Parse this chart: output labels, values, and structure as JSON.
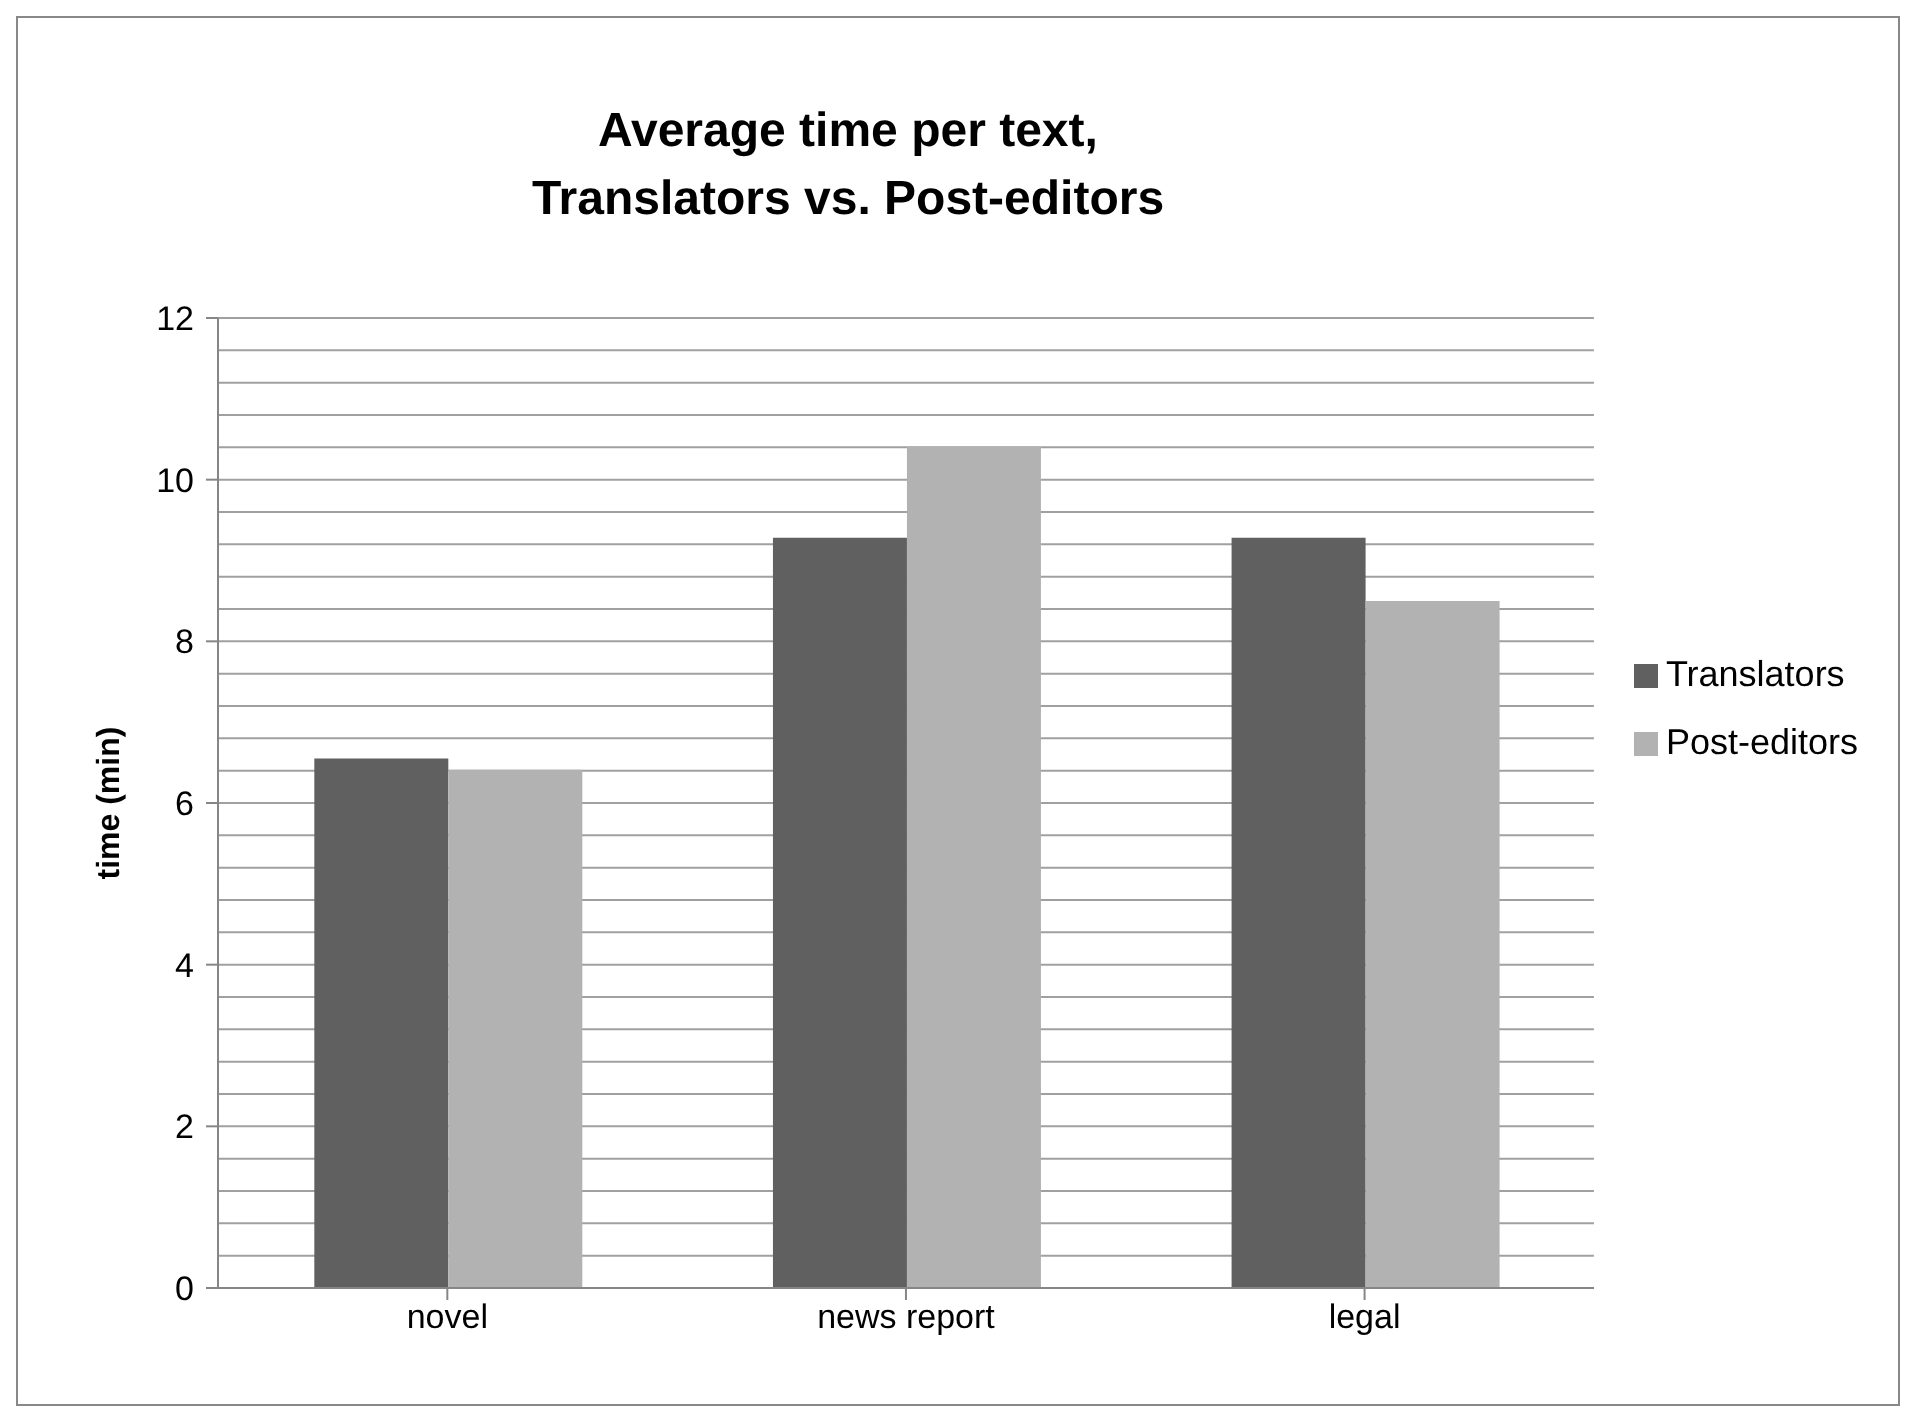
{
  "chart_data": {
    "type": "bar",
    "title": "Average time per text,\nTranslators vs. Post-editors",
    "ylabel": "time (min)",
    "categories": [
      "novel",
      "news report",
      "legal"
    ],
    "series": [
      {
        "name": "Translators",
        "color": "#606060",
        "values": [
          6.55,
          9.28,
          9.28
        ]
      },
      {
        "name": "Post-editors",
        "color": "#b2b2b2",
        "values": [
          6.41,
          10.41,
          8.5
        ]
      }
    ],
    "ylim": [
      0,
      12
    ],
    "yticks": [
      0,
      {
        "value": 0.4,
        "label": null
      },
      {
        "value": 0.8,
        "label": null
      },
      {
        "value": 1.2,
        "label": null
      },
      {
        "value": 1.6,
        "label": null
      },
      2,
      {
        "value": 2.4,
        "label": null
      },
      {
        "value": 2.8,
        "label": null
      },
      {
        "value": 3.2,
        "label": null
      },
      {
        "value": 3.6,
        "label": null
      },
      4,
      {
        "value": 4.4,
        "label": null
      },
      {
        "value": 4.8,
        "label": null
      },
      {
        "value": 5.2,
        "label": null
      },
      {
        "value": 5.6,
        "label": null
      },
      6,
      {
        "value": 6.4,
        "label": null
      },
      {
        "value": 6.8,
        "label": null
      },
      {
        "value": 7.2,
        "label": null
      },
      {
        "value": 7.6,
        "label": null
      },
      8,
      {
        "value": 8.4,
        "label": null
      },
      {
        "value": 8.8,
        "label": null
      },
      {
        "value": 9.2,
        "label": null
      },
      {
        "value": 9.6,
        "label": null
      },
      10,
      {
        "value": 10.4,
        "label": null
      },
      {
        "value": 10.8,
        "label": null
      },
      {
        "value": 11.2,
        "label": null
      },
      {
        "value": 11.6,
        "label": null
      },
      12
    ],
    "grid": "y",
    "legend": "right"
  }
}
